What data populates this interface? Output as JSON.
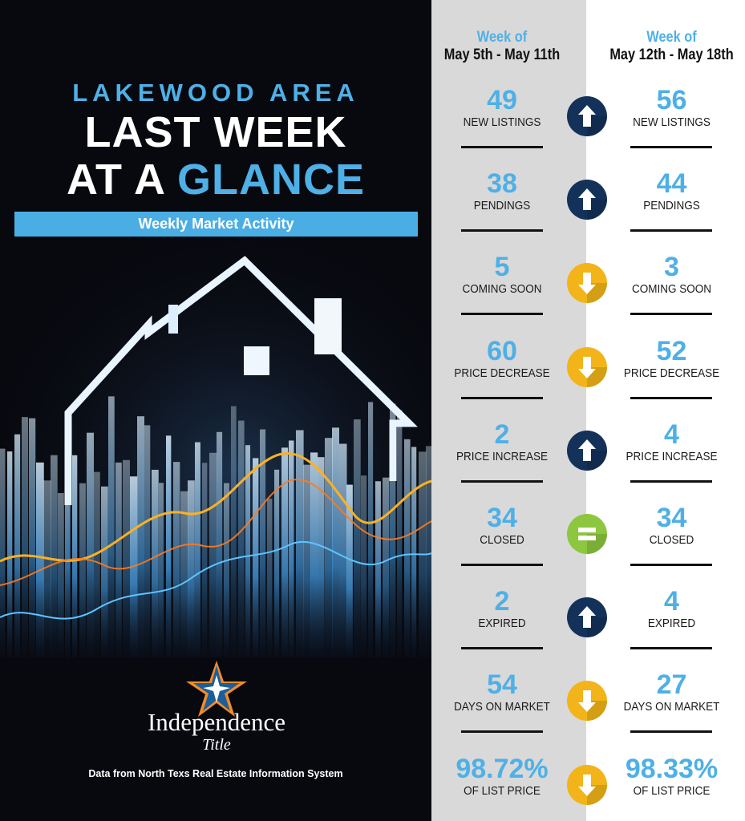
{
  "header": {
    "area": "LAKEWOOD AREA",
    "title_line1": "LAST WEEK",
    "title_line2_prefix": "AT A ",
    "title_line2_accent": "GLANCE",
    "band": "Weekly Market Activity"
  },
  "brand": {
    "name": "Independence",
    "sub": "Title",
    "source": "Data from North Texs Real Estate Information System"
  },
  "columns": {
    "prev": {
      "week_label": "Week of",
      "dates": "May 5th - May 11th"
    },
    "curr": {
      "week_label": "Week of",
      "dates": "May 12th - May 18th"
    }
  },
  "colors": {
    "accent": "#4eb0e6",
    "up": "#14315a",
    "down": "#f2b418",
    "equal": "#8dc63f"
  },
  "metrics": [
    {
      "label": "NEW LISTINGS",
      "prev": "49",
      "curr": "56",
      "trend": "up"
    },
    {
      "label": "PENDINGS",
      "prev": "38",
      "curr": "44",
      "trend": "up"
    },
    {
      "label": "COMING SOON",
      "prev": "5",
      "curr": "3",
      "trend": "down"
    },
    {
      "label": "PRICE DECREASE",
      "prev": "60",
      "curr": "52",
      "trend": "down"
    },
    {
      "label": "PRICE INCREASE",
      "prev": "2",
      "curr": "4",
      "trend": "up"
    },
    {
      "label": "CLOSED",
      "prev": "34",
      "curr": "34",
      "trend": "equal"
    },
    {
      "label": "EXPIRED",
      "prev": "2",
      "curr": "4",
      "trend": "up"
    },
    {
      "label": "DAYS ON MARKET",
      "prev": "54",
      "curr": "27",
      "trend": "down"
    },
    {
      "label": "OF LIST PRICE",
      "prev": "98.72%",
      "curr": "98.33%",
      "trend": "down"
    }
  ]
}
